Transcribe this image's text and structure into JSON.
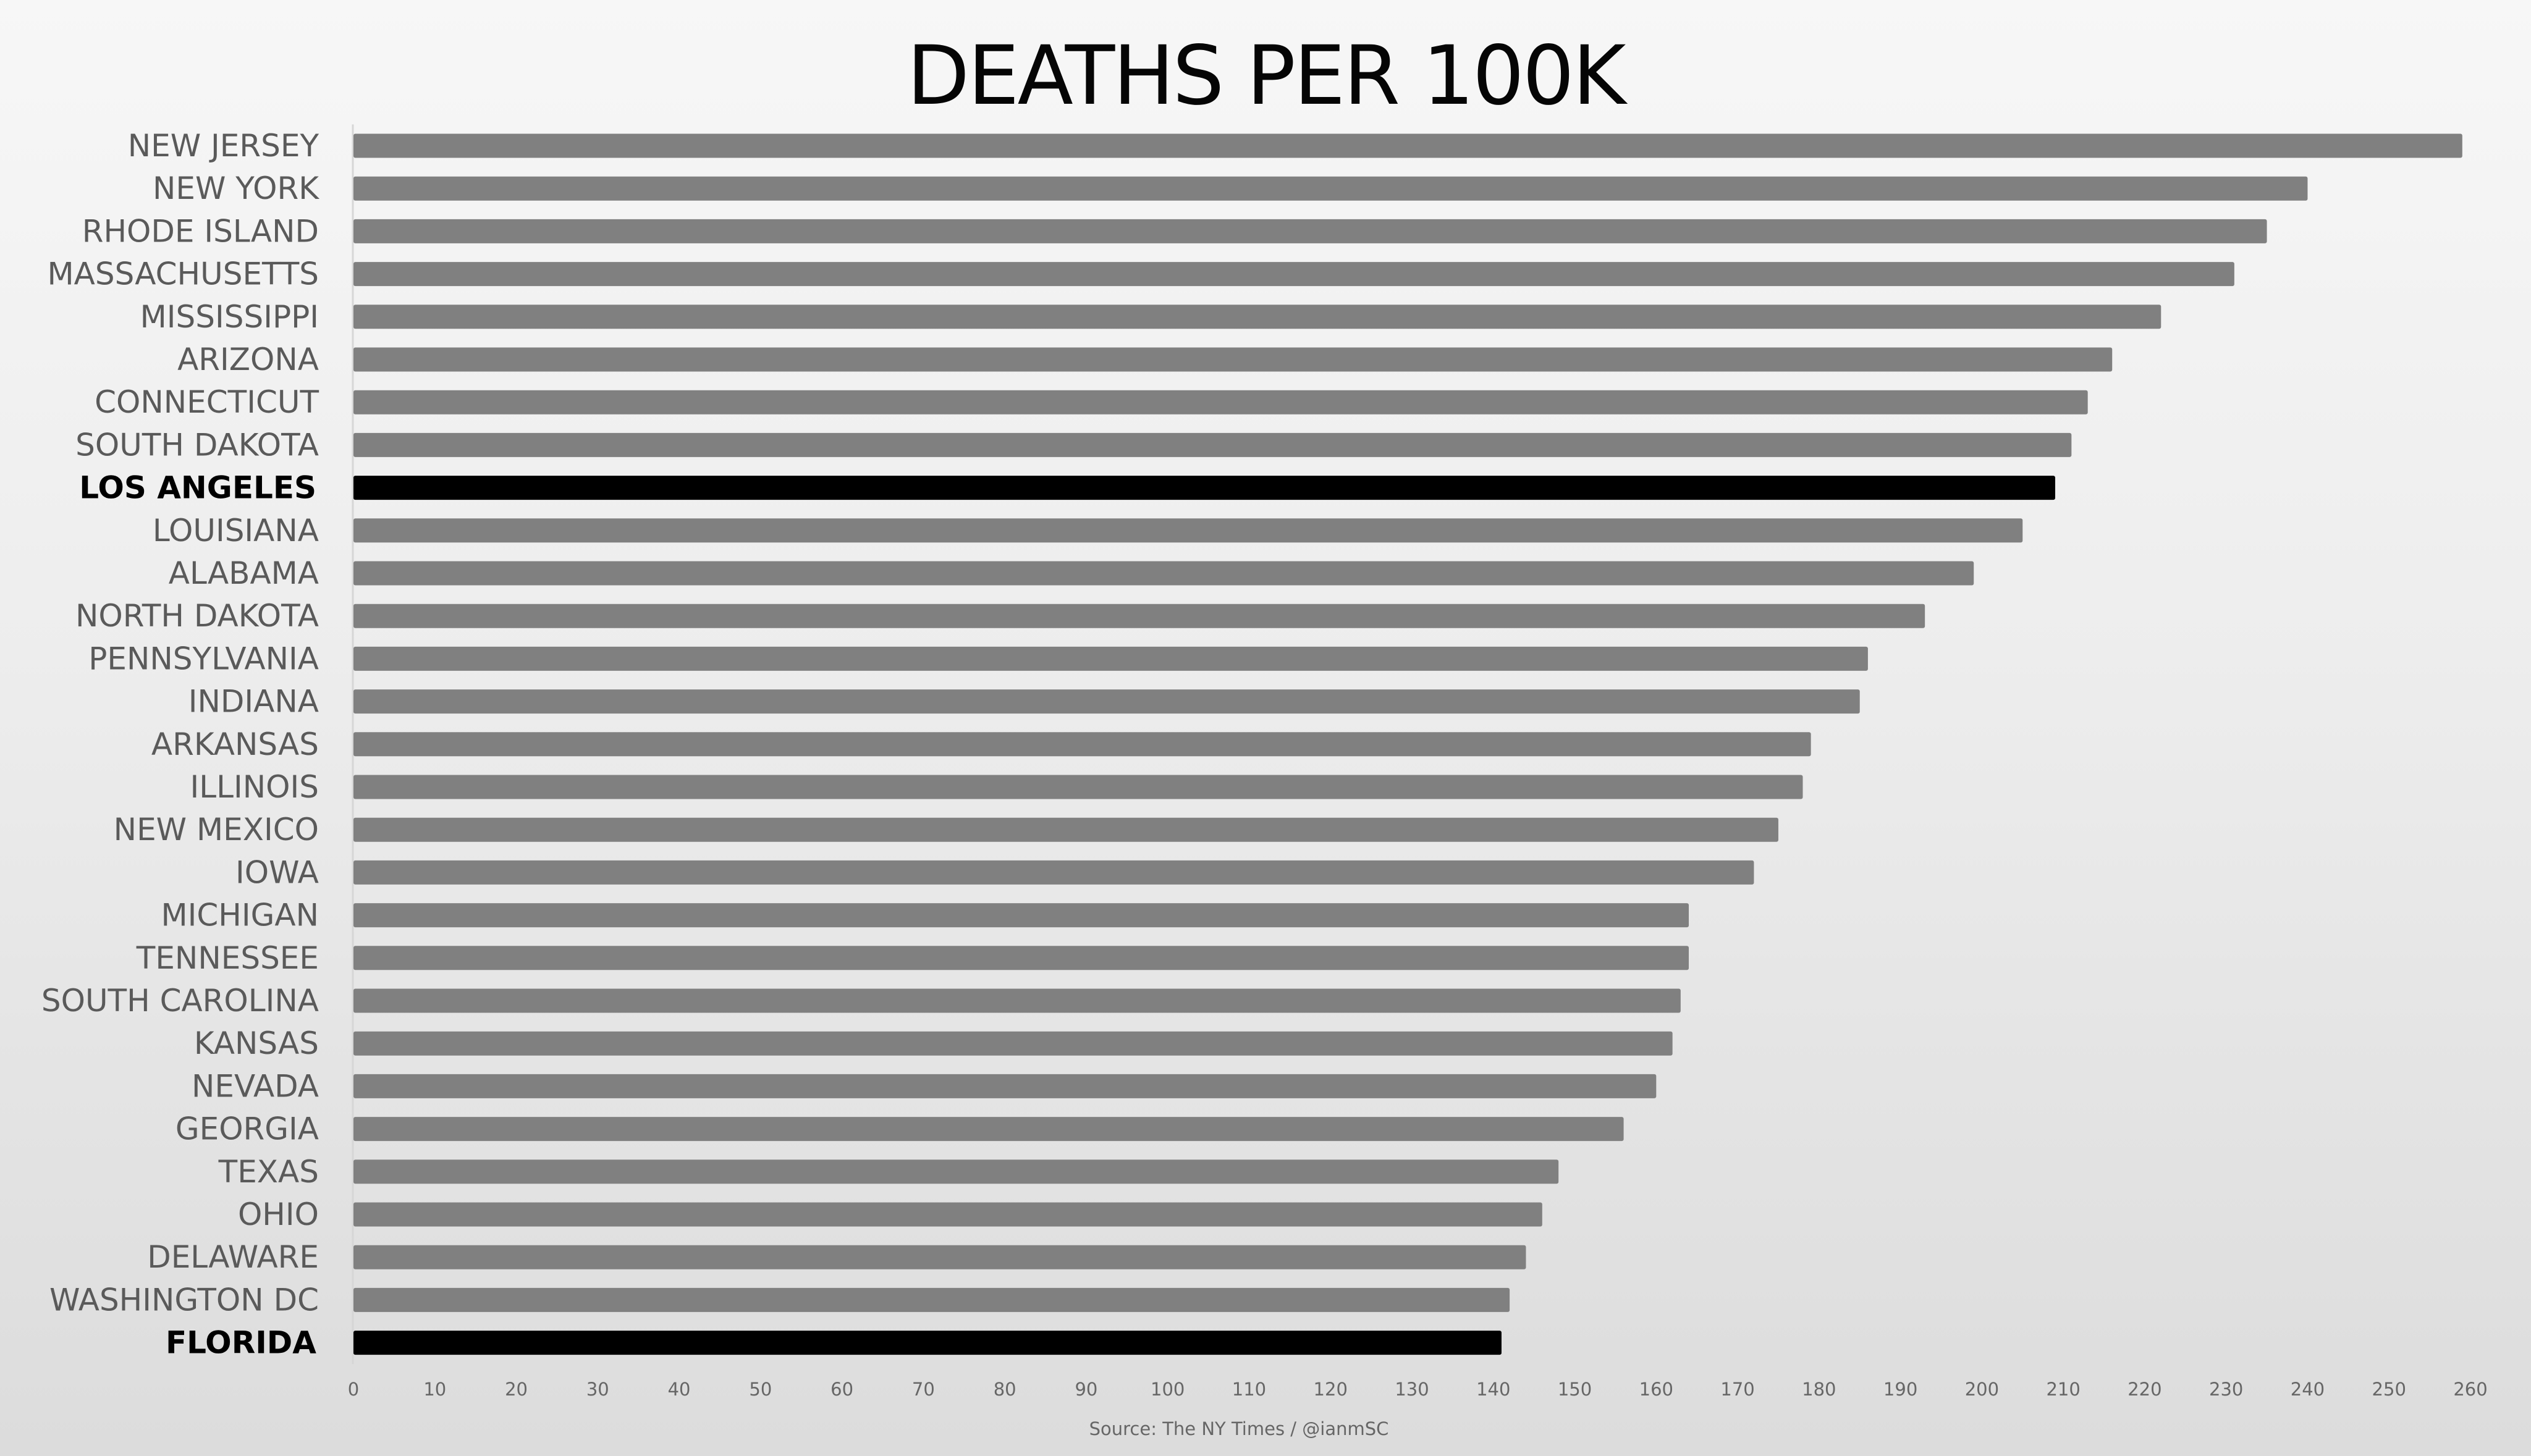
{
  "chart_data": {
    "type": "bar",
    "orientation": "horizontal",
    "title": "DEATHS PER 100K",
    "source": "Source: The NY Times / @ianmSC",
    "xlim": [
      0,
      260
    ],
    "ticks": [
      0,
      10,
      20,
      30,
      40,
      50,
      60,
      70,
      80,
      90,
      100,
      110,
      120,
      130,
      140,
      150,
      160,
      170,
      180,
      190,
      200,
      210,
      220,
      230,
      240,
      250,
      260
    ],
    "grid": false,
    "legend": "none",
    "categories": [
      "NEW JERSEY",
      "NEW YORK",
      "RHODE ISLAND",
      "MASSACHUSETTS",
      "MISSISSIPPI",
      "ARIZONA",
      "CONNECTICUT",
      "SOUTH DAKOTA",
      "LOS ANGELES",
      "LOUISIANA",
      "ALABAMA",
      "NORTH DAKOTA",
      "PENNSYLVANIA",
      "INDIANA",
      "ARKANSAS",
      "ILLINOIS",
      "NEW MEXICO",
      "IOWA",
      "MICHIGAN",
      "TENNESSEE",
      "SOUTH CAROLINA",
      "KANSAS",
      "NEVADA",
      "GEORGIA",
      "TEXAS",
      "OHIO",
      "DELAWARE",
      "WASHINGTON DC",
      "FLORIDA"
    ],
    "values": [
      259,
      240,
      235,
      231,
      222,
      216,
      213,
      211,
      209,
      205,
      199,
      193,
      186,
      185,
      179,
      178,
      175,
      172,
      164,
      164,
      163,
      162,
      160,
      156,
      148,
      146,
      144,
      142,
      141
    ],
    "highlighted": [
      "LOS ANGELES",
      "FLORIDA"
    ],
    "colors": {
      "bar": "#808080",
      "highlight": "#000000"
    }
  }
}
